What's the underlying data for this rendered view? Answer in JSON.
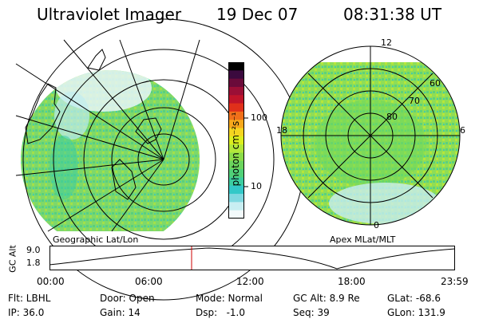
{
  "header": {
    "instrument": "Ultraviolet Imager",
    "date": "19 Dec 07",
    "time": "08:31:38 UT"
  },
  "colorbar": {
    "unit_label": "photon cm⁻²s⁻¹",
    "ticks": [
      "100",
      "10"
    ],
    "colors": [
      "#000000",
      "#3b0a3e",
      "#6a0b3a",
      "#9b0f36",
      "#c0142a",
      "#e0301a",
      "#f0701a",
      "#f7a81c",
      "#f5d520",
      "#dcee1e",
      "#b3e73a",
      "#8bdc4a",
      "#6bd55e",
      "#50d178",
      "#3ccda0",
      "#33c8c8",
      "#7fd8e0",
      "#c8eef2",
      "#f2fafb"
    ]
  },
  "left_map": {
    "caption": "Geographic Lat/Lon"
  },
  "right_map": {
    "caption": "Apex MLat/MLT",
    "mlt_labels": {
      "top": "12",
      "bottom": "0",
      "left": "18",
      "right": "6"
    },
    "mlat_labels": [
      "60",
      "70",
      "80"
    ]
  },
  "altitude_panel": {
    "ylabel": "GC Alt",
    "yticks": [
      "9.0",
      "1.8"
    ],
    "time_ticks": [
      "00:00",
      "06:00",
      "12:00",
      "18:00",
      "23:59"
    ],
    "marker_color": "#cc0000"
  },
  "info": {
    "filter": "Flt: LBHL",
    "ip": "IP: 36.0",
    "door": "Door: Open",
    "gain": "Gain: 14",
    "mode": "Mode: Normal",
    "dsp": "Dsp:   -1.0",
    "gc_alt": "GC Alt: 8.9 Re",
    "seq": "Seq: 39",
    "glat": "GLat: -68.6",
    "glon": "GLon: 131.9"
  }
}
